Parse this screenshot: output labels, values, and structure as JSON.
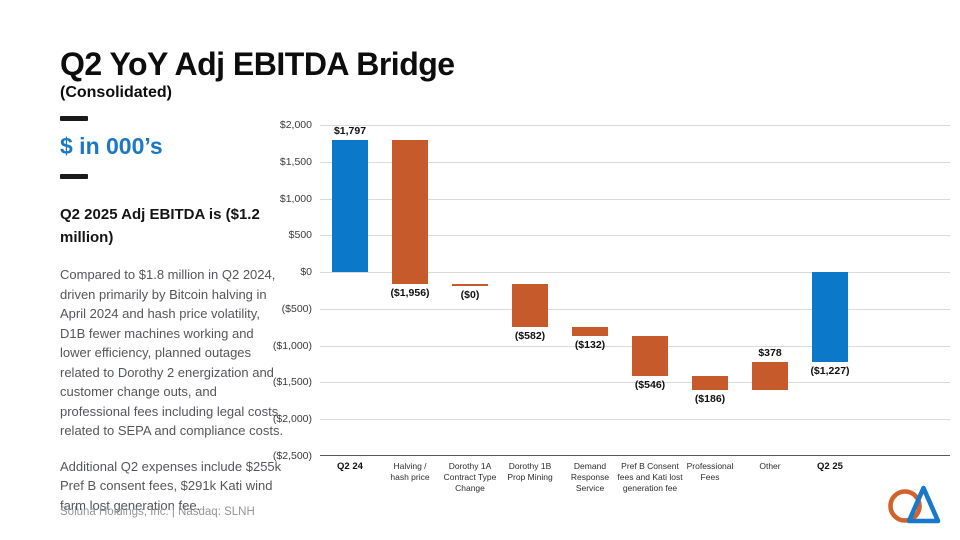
{
  "slide": {
    "title": "Q2 YoY Adj EBITDA Bridge",
    "subtitle": "(Consolidated)",
    "units_label": "$ in 000’s",
    "summary_heading": "Q2 2025 Adj EBITDA is ($1.2 million)",
    "paragraph1": "Compared to $1.8 million in Q2 2024, driven primarily by Bitcoin halving in April 2024 and hash price volatility, D1B fewer machines working and lower efficiency, planned outages related to Dorothy 2 energization and customer change outs, and professional fees including legal costs related to SEPA and compliance costs.",
    "paragraph2": "Additional Q2 expenses include $255k Pref B consent fees, $291k Kati wind farm lost generation fee.",
    "footer": "Soluna Holdings, Inc. |  Nasdaq: SLNH"
  },
  "colors": {
    "bar_blue": "#0b78c9",
    "bar_orange": "#c75a2a",
    "accent_blue": "#1b78c4",
    "grid": "#d9d9d9",
    "logo_orange": "#d2622a",
    "logo_blue": "#1878cb"
  },
  "chart_data": {
    "type": "bar",
    "subtype": "waterfall",
    "title": "Q2 YoY Adj EBITDA Bridge (Consolidated), $ in 000's",
    "xlabel": "",
    "ylabel": "",
    "ylim": [
      -2500,
      2000
    ],
    "ytick_step": 500,
    "grid": true,
    "ytick_labels": [
      "$2,000",
      "$1,500",
      "$1,000",
      "$500",
      "$0",
      "($500)",
      "($1,000)",
      "($1,500)",
      "($2,000)",
      "($2,500)"
    ],
    "items": [
      {
        "category": "Q2 24",
        "value": 1797,
        "display": "$1,797",
        "kind": "total",
        "bold": true
      },
      {
        "category": "Halving /\nhash price",
        "value": -1956,
        "display": "($1,956)",
        "kind": "delta"
      },
      {
        "category": "Dorothy 1A\nContract Type\nChange",
        "value": 0,
        "display": "($0)",
        "kind": "delta"
      },
      {
        "category": "Dorothy 1B\nProp Mining",
        "value": -582,
        "display": "($582)",
        "kind": "delta"
      },
      {
        "category": "Demand\nResponse\nService",
        "value": -132,
        "display": "($132)",
        "kind": "delta"
      },
      {
        "category": "Pref B Consent\nfees and Kati lost\ngeneration fee",
        "value": -546,
        "display": "($546)",
        "kind": "delta"
      },
      {
        "category": "Professional\nFees",
        "value": -186,
        "display": "($186)",
        "kind": "delta"
      },
      {
        "category": "Other",
        "value": 378,
        "display": "$378",
        "kind": "delta"
      },
      {
        "category": "Q2 25",
        "value": -1227,
        "display": "($1,227)",
        "kind": "total",
        "bold": true
      }
    ]
  }
}
